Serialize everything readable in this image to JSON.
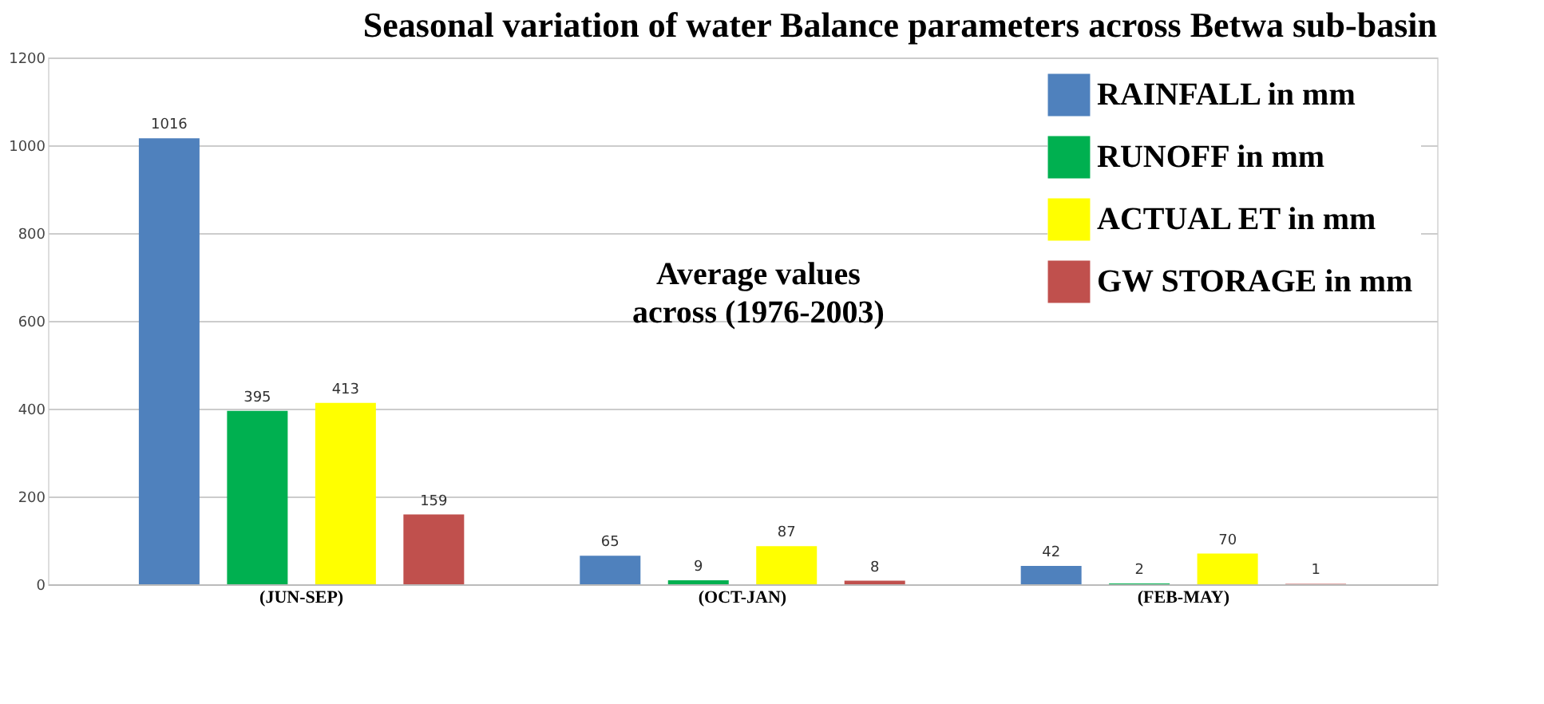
{
  "chart_data": {
    "type": "bar",
    "title": "Seasonal variation of water Balance parameters across Betwa sub-basin",
    "categories": [
      "(JUN-SEP)",
      "(OCT-JAN)",
      "(FEB-MAY)"
    ],
    "series": [
      {
        "name": "RAINFALL  in mm",
        "color": "#4f81bd",
        "values": [
          1016,
          65,
          42
        ]
      },
      {
        "name": "RUNOFF     in mm",
        "color": "#00b050",
        "values": [
          395,
          9,
          2
        ]
      },
      {
        "name": "ACTUAL ET   in mm",
        "color": "#ffff00",
        "values": [
          413,
          87,
          70
        ]
      },
      {
        "name": "GW STORAGE  in mm",
        "color": "#c0504d",
        "values": [
          159,
          8,
          1
        ]
      }
    ],
    "annotations": [
      "Average values across (1976-2003)"
    ],
    "ylim": [
      0,
      1200
    ],
    "yticks": [
      0,
      200,
      400,
      600,
      800,
      1000,
      1200
    ],
    "grid": "y",
    "legend": "top right",
    "data_labels": true
  }
}
